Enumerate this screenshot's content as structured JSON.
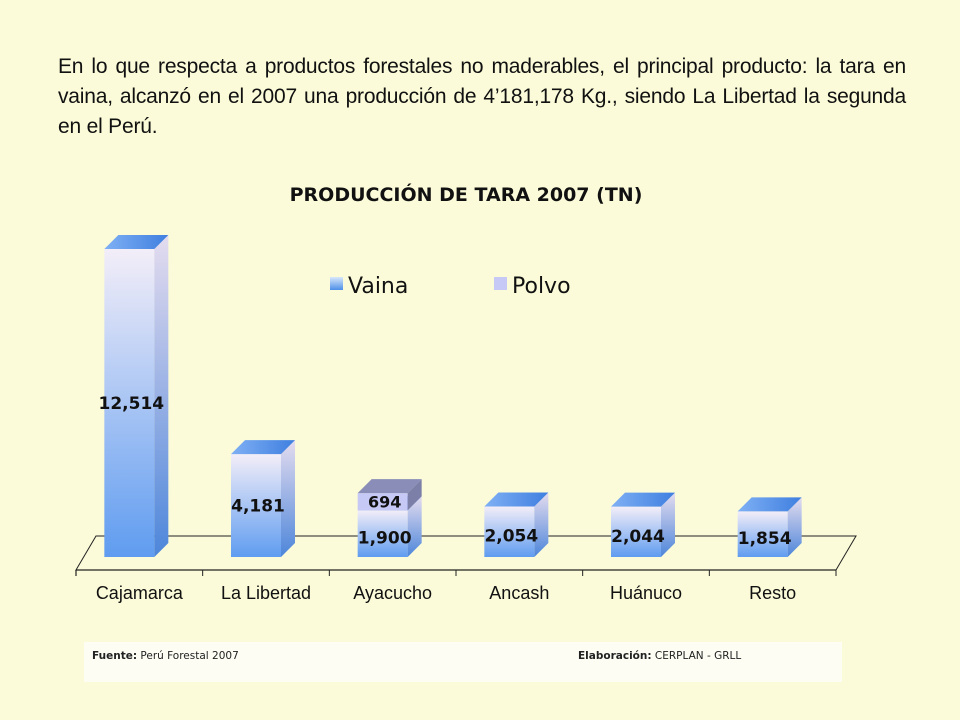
{
  "intro_text": "En lo que respecta a productos forestales no maderables, el principal producto: la tara en vaina, alcanzó en el 2007 una producción de 4’181,178 Kg., siendo La Libertad la segunda en el Perú.",
  "colors": {
    "background": "#fbfbd9",
    "vaina_top": "#f3eef8",
    "vaina_bottom": "#5f9cf0",
    "polvo": "#c6c8f5",
    "polvo_dark": "#7c7fa8"
  },
  "chart_data": {
    "type": "bar",
    "stacked": true,
    "three_d": true,
    "title": "PRODUCCIÓN DE TARA 2007  (TN)",
    "categories": [
      "Cajamarca",
      "La Libertad",
      "Ayacucho",
      "Ancash",
      "Huánuco",
      "Resto"
    ],
    "series": [
      {
        "name": "Vaina",
        "values": [
          12514,
          4181,
          1900,
          2054,
          2044,
          1854
        ]
      },
      {
        "name": "Polvo",
        "values": [
          0,
          0,
          694,
          0,
          0,
          0
        ]
      }
    ],
    "data_labels": {
      "Vaina": [
        "12,514",
        "4,181",
        "1,900",
        "2,054",
        "2,044",
        "1,854"
      ],
      "Polvo": [
        "",
        "",
        "694",
        "",
        "",
        ""
      ]
    },
    "legend": [
      "Vaina",
      "Polvo"
    ],
    "legend_position": "top-right",
    "ylim": [
      0,
      13000
    ],
    "grid": false
  },
  "footer": {
    "source_label": "Fuente:",
    "source_value": "Perú Forestal 2007",
    "elab_label": "Elaboración:",
    "elab_value": "CERPLAN - GRLL"
  }
}
